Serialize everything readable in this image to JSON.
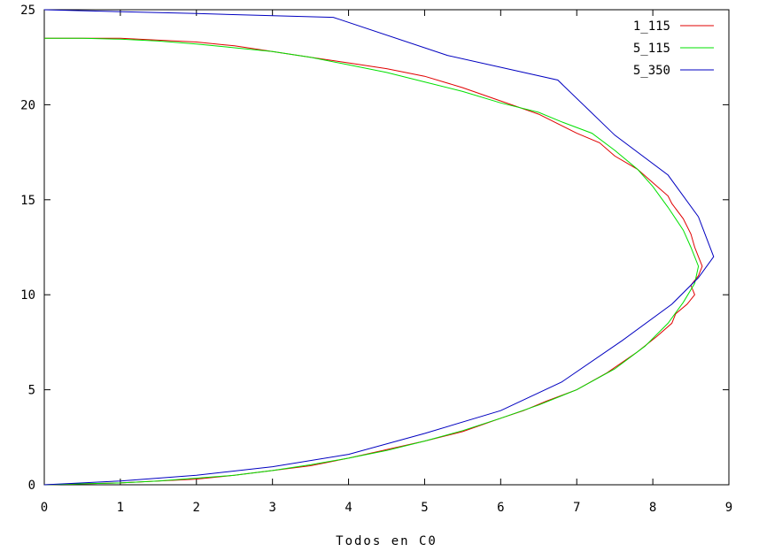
{
  "chart_data": {
    "type": "line",
    "title": "",
    "xlabel": "Todos en C0",
    "ylabel": "",
    "xlim": [
      0,
      9
    ],
    "ylim": [
      0,
      25
    ],
    "xticks": [
      0,
      1,
      2,
      3,
      4,
      5,
      6,
      7,
      8,
      9
    ],
    "yticks": [
      0,
      5,
      10,
      15,
      20,
      25
    ],
    "grid": false,
    "legend_position": "top-right",
    "series": [
      {
        "name": "1_115",
        "color": "#e00000",
        "points": [
          [
            0,
            0
          ],
          [
            0.5,
            0.05
          ],
          [
            1,
            0.1
          ],
          [
            1.5,
            0.2
          ],
          [
            2,
            0.3
          ],
          [
            2.5,
            0.5
          ],
          [
            3,
            0.75
          ],
          [
            3.5,
            1.0
          ],
          [
            4,
            1.4
          ],
          [
            4.5,
            1.85
          ],
          [
            5,
            2.3
          ],
          [
            5.5,
            2.8
          ],
          [
            6,
            3.5
          ],
          [
            6.3,
            3.9
          ],
          [
            6.6,
            4.4
          ],
          [
            7,
            5.0
          ],
          [
            7.4,
            5.9
          ],
          [
            7.8,
            7.0
          ],
          [
            8.05,
            7.8
          ],
          [
            8.25,
            8.5
          ],
          [
            8.3,
            9.0
          ],
          [
            8.45,
            9.5
          ],
          [
            8.55,
            10.0
          ],
          [
            8.5,
            10.5
          ],
          [
            8.6,
            11.0
          ],
          [
            8.65,
            11.5
          ],
          [
            8.6,
            12.0
          ],
          [
            8.55,
            12.5
          ],
          [
            8.5,
            13.2
          ],
          [
            8.4,
            14.0
          ],
          [
            8.25,
            14.8
          ],
          [
            8.2,
            15.2
          ],
          [
            8.0,
            15.9
          ],
          [
            7.8,
            16.6
          ],
          [
            7.5,
            17.3
          ],
          [
            7.3,
            18.0
          ],
          [
            7.0,
            18.5
          ],
          [
            6.7,
            19.1
          ],
          [
            6.5,
            19.5
          ],
          [
            6.0,
            20.2
          ],
          [
            5.5,
            20.9
          ],
          [
            5.0,
            21.5
          ],
          [
            4.5,
            21.9
          ],
          [
            4.0,
            22.2
          ],
          [
            3.5,
            22.5
          ],
          [
            3.0,
            22.8
          ],
          [
            2.5,
            23.1
          ],
          [
            2.0,
            23.3
          ],
          [
            1.5,
            23.4
          ],
          [
            1.0,
            23.5
          ],
          [
            0.5,
            23.5
          ],
          [
            0,
            23.5
          ]
        ]
      },
      {
        "name": "5_115",
        "color": "#00e000",
        "points": [
          [
            0,
            0
          ],
          [
            0.5,
            0.05
          ],
          [
            1,
            0.1
          ],
          [
            1.5,
            0.2
          ],
          [
            2,
            0.35
          ],
          [
            2.5,
            0.5
          ],
          [
            3,
            0.75
          ],
          [
            3.5,
            1.05
          ],
          [
            4,
            1.4
          ],
          [
            4.5,
            1.8
          ],
          [
            5,
            2.3
          ],
          [
            5.5,
            2.85
          ],
          [
            6,
            3.5
          ],
          [
            6.5,
            4.2
          ],
          [
            7,
            5.0
          ],
          [
            7.5,
            6.1
          ],
          [
            7.9,
            7.3
          ],
          [
            8.2,
            8.5
          ],
          [
            8.4,
            9.6
          ],
          [
            8.55,
            10.6
          ],
          [
            8.6,
            11.5
          ],
          [
            8.5,
            12.5
          ],
          [
            8.4,
            13.4
          ],
          [
            8.2,
            14.6
          ],
          [
            8.0,
            15.7
          ],
          [
            7.8,
            16.6
          ],
          [
            7.5,
            17.6
          ],
          [
            7.2,
            18.5
          ],
          [
            6.8,
            19.1
          ],
          [
            6.5,
            19.6
          ],
          [
            6.0,
            20.1
          ],
          [
            5.5,
            20.7
          ],
          [
            5.0,
            21.2
          ],
          [
            4.5,
            21.7
          ],
          [
            4.0,
            22.1
          ],
          [
            3.5,
            22.5
          ],
          [
            3.0,
            22.8
          ],
          [
            2.5,
            23.0
          ],
          [
            2.0,
            23.2
          ],
          [
            1.5,
            23.35
          ],
          [
            1.0,
            23.45
          ],
          [
            0.5,
            23.5
          ],
          [
            0,
            23.5
          ]
        ]
      },
      {
        "name": "5_350",
        "color": "#0000c0",
        "points": [
          [
            0,
            0
          ],
          [
            0.5,
            0.1
          ],
          [
            1,
            0.2
          ],
          [
            2,
            0.5
          ],
          [
            3,
            0.95
          ],
          [
            4,
            1.6
          ],
          [
            5,
            2.7
          ],
          [
            6,
            3.9
          ],
          [
            6.8,
            5.4
          ],
          [
            7.6,
            7.6
          ],
          [
            8.25,
            9.5
          ],
          [
            8.6,
            10.9
          ],
          [
            8.8,
            12.0
          ],
          [
            8.6,
            14.1
          ],
          [
            8.2,
            16.3
          ],
          [
            7.5,
            18.4
          ],
          [
            6.75,
            21.3
          ],
          [
            5.3,
            22.6
          ],
          [
            3.8,
            24.6
          ],
          [
            2.0,
            24.8
          ],
          [
            0.5,
            24.95
          ],
          [
            0,
            25
          ]
        ]
      }
    ]
  }
}
